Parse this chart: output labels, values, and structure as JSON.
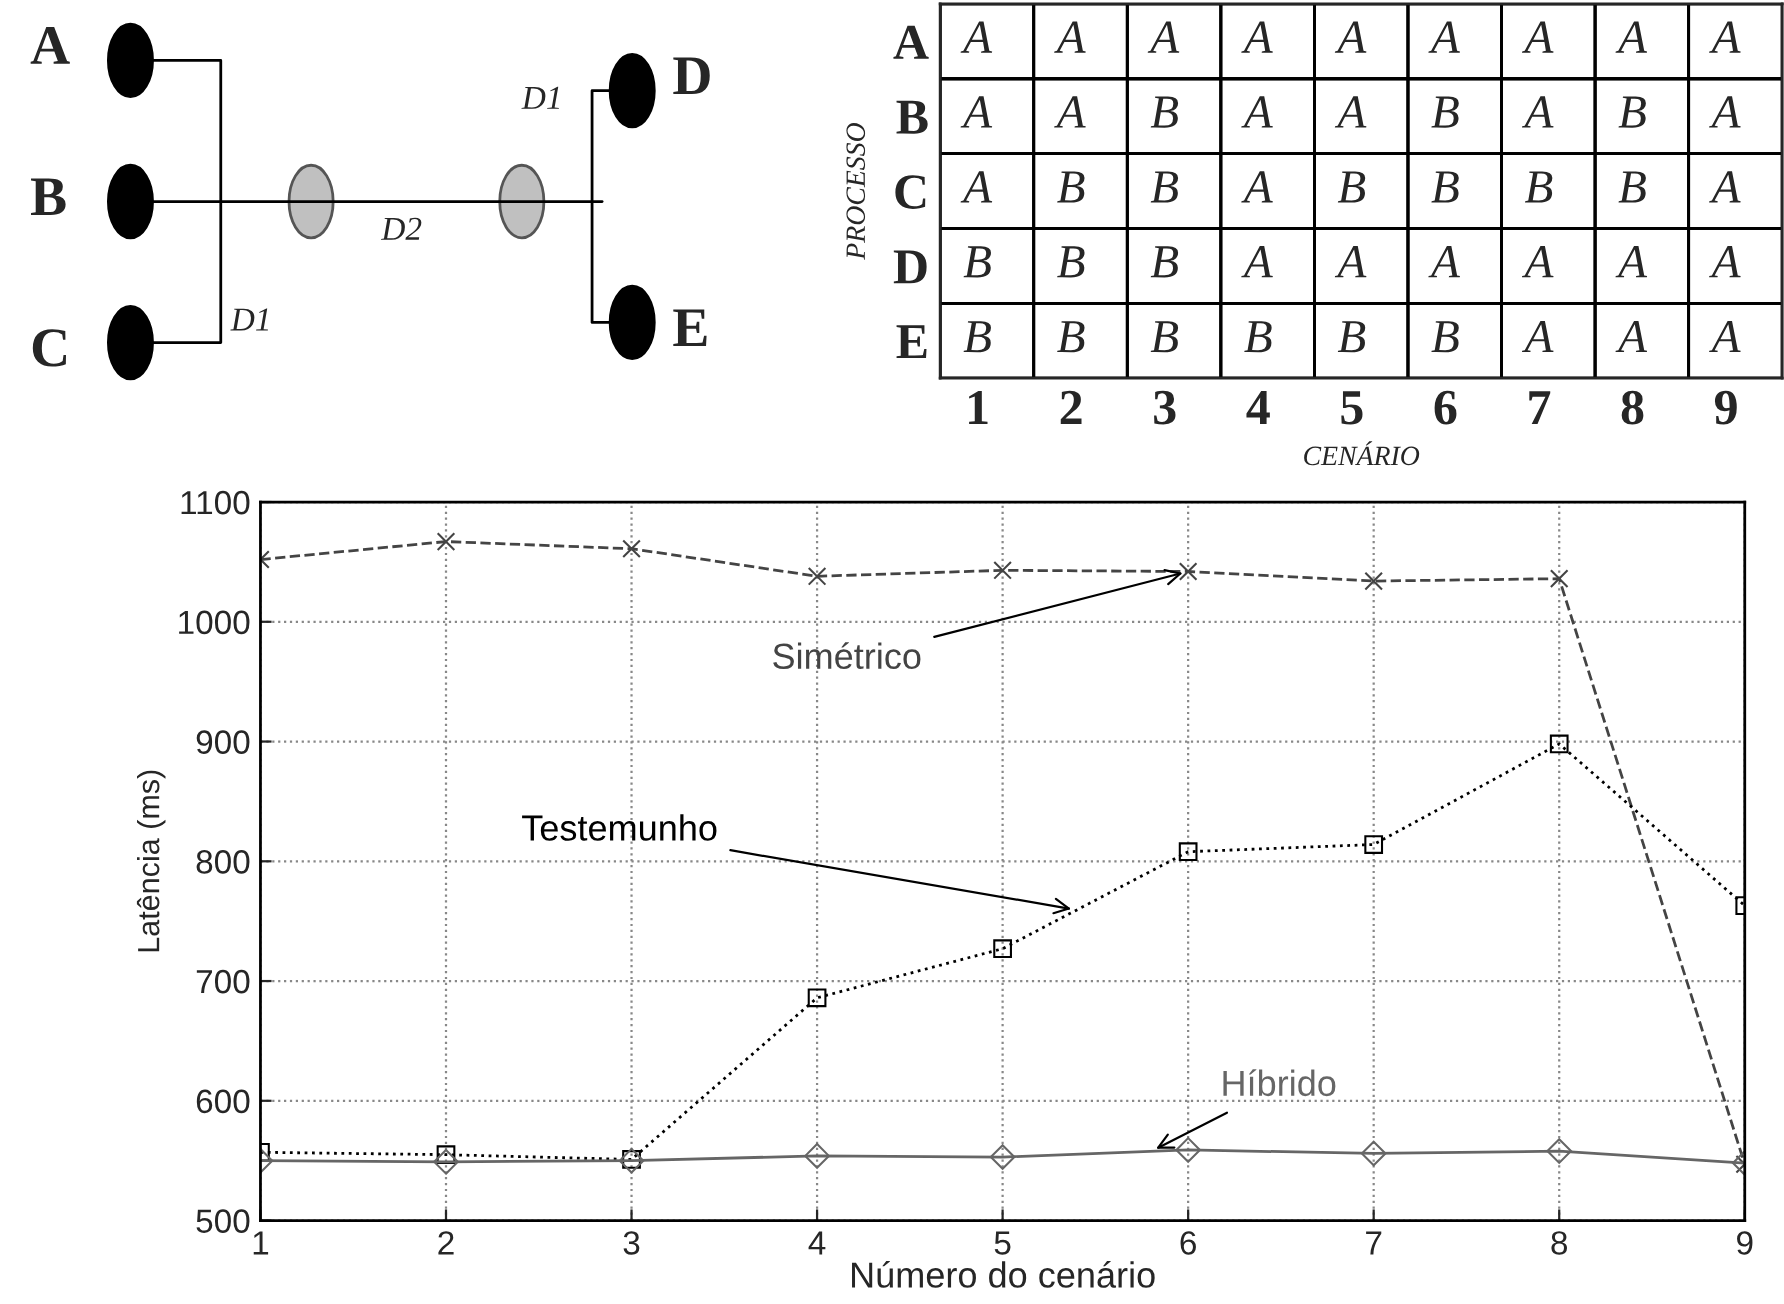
{
  "chart_data": [
    {
      "type": "other",
      "annotations": [
        "A",
        "B",
        "C",
        "D",
        "E",
        "D1",
        "D2",
        "D1"
      ]
    },
    {
      "type": "heatmap",
      "xlabel": "CENÁRIO",
      "ylabel": "PROCESSO",
      "categories": [
        "1",
        "2",
        "3",
        "4",
        "5",
        "6",
        "7",
        "8",
        "9"
      ],
      "y_categories": [
        "A",
        "B",
        "C",
        "D",
        "E"
      ],
      "cells": [
        [
          null,
          null,
          null,
          null,
          null,
          null,
          null,
          null,
          null
        ],
        [
          null,
          null,
          null,
          null,
          null,
          null,
          null,
          null,
          null
        ],
        [
          null,
          null,
          null,
          null,
          null,
          null,
          null,
          null,
          null
        ],
        [
          null,
          null,
          null,
          null,
          null,
          null,
          null,
          null,
          null
        ],
        [
          null,
          null,
          null,
          null,
          null,
          null,
          null,
          null,
          null
        ]
      ],
      "cell_labels": [
        [
          "A",
          "A",
          "A",
          "A",
          "A",
          "A",
          "A",
          "A",
          "A"
        ],
        [
          "A",
          "A",
          "B",
          "A",
          "A",
          "B",
          "A",
          "B",
          "A"
        ],
        [
          "A",
          "B",
          "B",
          "A",
          "B",
          "B",
          "B",
          "B",
          "A"
        ],
        [
          "B",
          "B",
          "B",
          "A",
          "A",
          "A",
          "A",
          "A",
          "A"
        ],
        [
          "B",
          "B",
          "B",
          "B",
          "B",
          "B",
          "A",
          "A",
          "A"
        ]
      ]
    },
    {
      "type": "line",
      "xlabel": "Número do cenário",
      "ylabel": "Latência (ms)",
      "x": [
        1,
        2,
        3,
        4,
        5,
        6,
        7,
        8,
        9
      ],
      "xlim": [
        1,
        9
      ],
      "xticks": [
        1,
        2,
        3,
        4,
        5,
        6,
        7,
        8,
        9
      ],
      "ylim": [
        500,
        1100
      ],
      "yticks": [
        500,
        600,
        700,
        800,
        900,
        1000,
        1100
      ],
      "grid": true,
      "legend": false,
      "series": [
        {
          "name": "Simétrico",
          "color": "#444444",
          "marker": "cross",
          "line_style": "dashed",
          "values": [
            1052,
            1067,
            1061,
            1038,
            1043,
            1042,
            1034,
            1036,
            547
          ]
        },
        {
          "name": "Testemunho",
          "color": "#000000",
          "marker": "square",
          "line_style": "dotted",
          "values": [
            557,
            555,
            551,
            686,
            727,
            808,
            814,
            898,
            763
          ]
        },
        {
          "name": "Híbrido",
          "color": "#666666",
          "marker": "diamond",
          "line_style": "solid",
          "values": [
            550,
            549,
            550,
            554,
            553,
            559,
            556,
            558,
            548
          ]
        }
      ]
    }
  ]
}
